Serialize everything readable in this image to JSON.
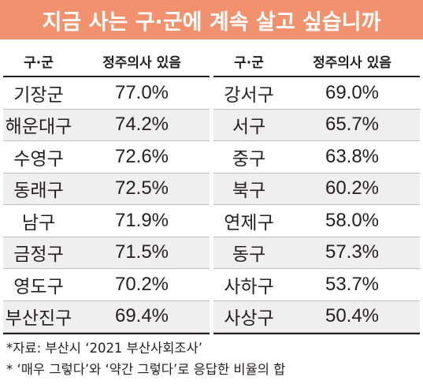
{
  "title": "지금 사는 구·군에 계속 살고 싶습니까",
  "header": {
    "district": "구·군",
    "intent": "정주의사 있음"
  },
  "chart_data": {
    "type": "table",
    "columns": [
      "구·군",
      "정주의사 있음"
    ],
    "left": [
      {
        "district": "기장군",
        "value": "77.0%"
      },
      {
        "district": "해운대구",
        "value": "74.2%"
      },
      {
        "district": "수영구",
        "value": "72.6%"
      },
      {
        "district": "동래구",
        "value": "72.5%"
      },
      {
        "district": "남구",
        "value": "71.9%"
      },
      {
        "district": "금정구",
        "value": "71.5%"
      },
      {
        "district": "영도구",
        "value": "70.2%"
      },
      {
        "district": "부산진구",
        "value": "69.4%"
      }
    ],
    "right": [
      {
        "district": "강서구",
        "value": "69.0%"
      },
      {
        "district": "서구",
        "value": "65.7%"
      },
      {
        "district": "중구",
        "value": "63.8%"
      },
      {
        "district": "북구",
        "value": "60.2%"
      },
      {
        "district": "연제구",
        "value": "58.0%"
      },
      {
        "district": "동구",
        "value": "57.3%"
      },
      {
        "district": "사하구",
        "value": "53.7%"
      },
      {
        "district": "사상구",
        "value": "50.4%"
      }
    ]
  },
  "notes": [
    "*자료: 부산시 ‘2021 부산사회조사’",
    "* ‘매우 그렇다’와 ‘약간 그렇다’로 응답한 비율의 합"
  ],
  "colors": {
    "title_bg": "#f2916d",
    "title_text": "#ffffff",
    "zebra": "#efefef"
  }
}
